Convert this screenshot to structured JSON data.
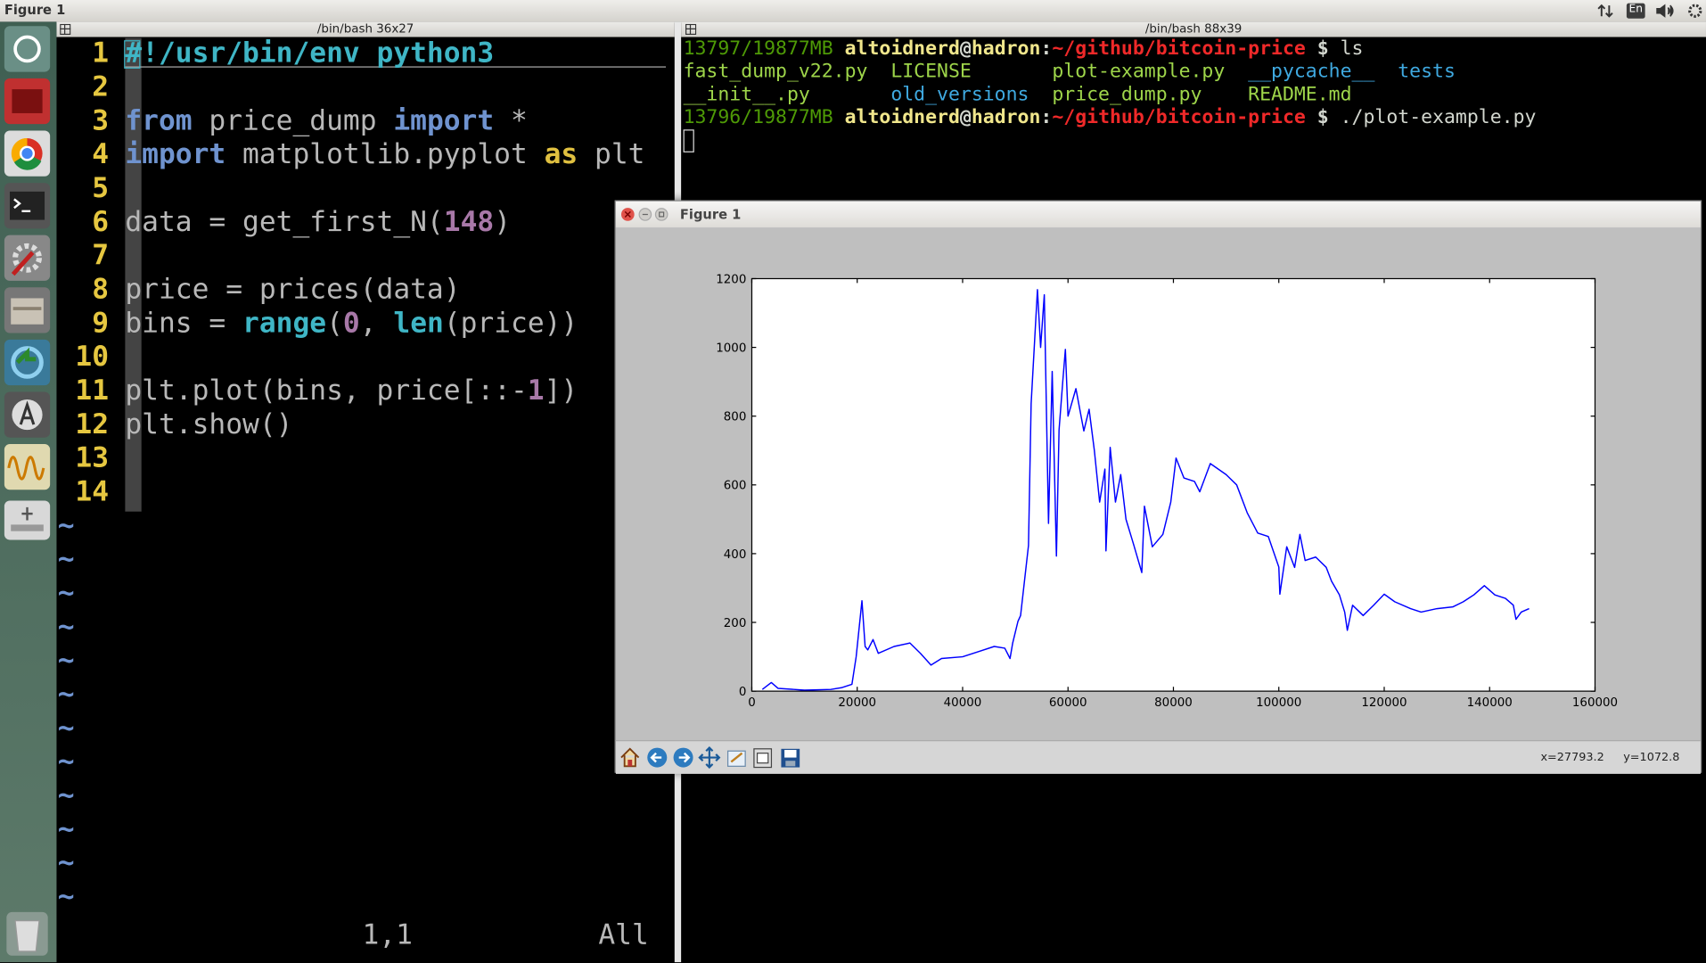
{
  "top_bar": {
    "title": "Figure 1",
    "keyboard": "En"
  },
  "left_terminal": {
    "title": "/bin/bash 36x27",
    "lines": [
      {
        "number": 1,
        "tokens": [
          {
            "text": "#!/usr/bin/env python3",
            "color": "#3fb6c6",
            "bold": true
          }
        ]
      },
      {
        "number": 2,
        "tokens": []
      },
      {
        "number": 3,
        "tokens": [
          {
            "text": "from",
            "color": "#6f93cf",
            "bold": true
          },
          {
            "text": " price_dump ",
            "color": "#b8b8b8",
            "bold": false
          },
          {
            "text": "import",
            "color": "#6f93cf",
            "bold": true
          },
          {
            "text": " *",
            "color": "#b8b8b8",
            "bold": false
          }
        ]
      },
      {
        "number": 4,
        "tokens": [
          {
            "text": "import",
            "color": "#6f93cf",
            "bold": true
          },
          {
            "text": " matplotlib.pyplot ",
            "color": "#b8b8b8",
            "bold": false
          },
          {
            "text": "as",
            "color": "#e0c040",
            "bold": true
          },
          {
            "text": " plt",
            "color": "#b8b8b8",
            "bold": false
          }
        ]
      },
      {
        "number": 5,
        "tokens": []
      },
      {
        "number": 6,
        "tokens": [
          {
            "text": "data = get_first_N(",
            "color": "#b8b8b8",
            "bold": false
          },
          {
            "text": "148",
            "color": "#a878a8",
            "bold": true
          },
          {
            "text": ")",
            "color": "#b8b8b8",
            "bold": false
          }
        ]
      },
      {
        "number": 7,
        "tokens": []
      },
      {
        "number": 8,
        "tokens": [
          {
            "text": "price = prices(data)",
            "color": "#b8b8b8",
            "bold": false
          }
        ]
      },
      {
        "number": 9,
        "tokens": [
          {
            "text": "bins = ",
            "color": "#b8b8b8",
            "bold": false
          },
          {
            "text": "range",
            "color": "#3fb6c6",
            "bold": true
          },
          {
            "text": "(",
            "color": "#b8b8b8",
            "bold": false
          },
          {
            "text": "0",
            "color": "#a878a8",
            "bold": true
          },
          {
            "text": ", ",
            "color": "#b8b8b8",
            "bold": false
          },
          {
            "text": "len",
            "color": "#3fb6c6",
            "bold": true
          },
          {
            "text": "(price))",
            "color": "#b8b8b8",
            "bold": false
          }
        ]
      },
      {
        "number": 10,
        "tokens": []
      },
      {
        "number": 11,
        "tokens": [
          {
            "text": "plt.plot(bins, price[::-",
            "color": "#b8b8b8",
            "bold": false
          },
          {
            "text": "1",
            "color": "#a878a8",
            "bold": true
          },
          {
            "text": "])",
            "color": "#b8b8b8",
            "bold": false
          }
        ]
      },
      {
        "number": 12,
        "tokens": [
          {
            "text": "plt.show()",
            "color": "#b8b8b8",
            "bold": false
          }
        ]
      },
      {
        "number": 13,
        "tokens": []
      },
      {
        "number": 14,
        "tokens": []
      }
    ],
    "tildes": [
      "~",
      "~",
      "~",
      "~",
      "~",
      "~",
      "~",
      "~",
      "~",
      "~",
      "~",
      "~"
    ],
    "position": "1,1",
    "scroll": "All"
  },
  "right_terminal": {
    "title": "/bin/bash 88x39",
    "lines": [
      [
        {
          "text": "13797/19877MB ",
          "color": "#4e9a06",
          "bold": false
        },
        {
          "text": "altoidnerd",
          "color": "#f0e68c",
          "bold": true
        },
        {
          "text": "@",
          "color": "#d3d7cf",
          "bold": true
        },
        {
          "text": "hadron",
          "color": "#f0e68c",
          "bold": true
        },
        {
          "text": ":",
          "color": "#d3d7cf",
          "bold": true
        },
        {
          "text": "~/github/bitcoin-price",
          "color": "#ef2929",
          "bold": true
        },
        {
          "text": " $ ",
          "color": "#d3d7cf",
          "bold": true
        },
        {
          "text": "ls",
          "color": "#d3d7cf",
          "bold": false
        }
      ],
      [
        {
          "text": "fast_dump_v22.py  ",
          "color": "#9ed54a",
          "bold": false
        },
        {
          "text": "LICENSE       ",
          "color": "#9ed54a",
          "bold": false
        },
        {
          "text": "plot-example.py  ",
          "color": "#9ed54a",
          "bold": false
        },
        {
          "text": "__pycache__  ",
          "color": "#3fa9e0",
          "bold": false
        },
        {
          "text": "tests",
          "color": "#3fa9e0",
          "bold": false
        }
      ],
      [
        {
          "text": "__init__.py       ",
          "color": "#9ed54a",
          "bold": false
        },
        {
          "text": "old_versions  ",
          "color": "#3fa9e0",
          "bold": false
        },
        {
          "text": "price_dump.py    ",
          "color": "#9ed54a",
          "bold": false
        },
        {
          "text": "README.md",
          "color": "#9ed54a",
          "bold": false
        }
      ],
      [
        {
          "text": "13796/19877MB ",
          "color": "#4e9a06",
          "bold": false
        },
        {
          "text": "altoidnerd",
          "color": "#f0e68c",
          "bold": true
        },
        {
          "text": "@",
          "color": "#d3d7cf",
          "bold": true
        },
        {
          "text": "hadron",
          "color": "#f0e68c",
          "bold": true
        },
        {
          "text": ":",
          "color": "#d3d7cf",
          "bold": true
        },
        {
          "text": "~/github/bitcoin-price",
          "color": "#ef2929",
          "bold": true
        },
        {
          "text": " $ ",
          "color": "#d3d7cf",
          "bold": true
        },
        {
          "text": "./plot-example.py",
          "color": "#d3d7cf",
          "bold": false
        }
      ]
    ]
  },
  "figure_window": {
    "title": "Figure 1",
    "status_x": "x=27793.2",
    "status_y": "y=1072.8"
  },
  "chart_data": {
    "type": "line",
    "xlim": [
      0,
      160000
    ],
    "ylim": [
      0,
      1200
    ],
    "xticks": [
      0,
      20000,
      40000,
      60000,
      80000,
      100000,
      120000,
      140000,
      160000
    ],
    "yticks": [
      0,
      200,
      400,
      600,
      800,
      1000,
      1200
    ],
    "grid": false,
    "series": [
      {
        "color": "#0000ff",
        "x": [
          2000,
          3700,
          5000,
          10000,
          15000,
          17000,
          19000,
          19800,
          20900,
          21500,
          22000,
          23000,
          24000,
          27000,
          30000,
          32000,
          34000,
          36000,
          40000,
          43000,
          46000,
          48000,
          49000,
          49500,
          50500,
          51000,
          52500,
          53000,
          54200,
          54800,
          55500,
          56300,
          57000,
          57800,
          58300,
          59000,
          59500,
          60000,
          61500,
          63000,
          64000,
          65000,
          66000,
          67000,
          67200,
          68000,
          69000,
          70000,
          71000,
          72500,
          74000,
          74500,
          76000,
          78000,
          79500,
          80500,
          82000,
          84000,
          85000,
          87000,
          90000,
          92000,
          94000,
          96000,
          98000,
          100000,
          100200,
          101500,
          103000,
          104000,
          105000,
          107000,
          109000,
          110000,
          111500,
          112500,
          113000,
          114000,
          116000,
          118000,
          120000,
          122000,
          125000,
          127000,
          130000,
          133000,
          135000,
          137000,
          139000,
          141000,
          143000,
          144500,
          145000,
          146000,
          147500
        ],
        "values": [
          5,
          25,
          8,
          3,
          5,
          10,
          20,
          100,
          263,
          130,
          120,
          150,
          110,
          130,
          140,
          110,
          76,
          95,
          100,
          115,
          130,
          125,
          95,
          140,
          203,
          220,
          424,
          836,
          1168,
          1000,
          1153,
          488,
          930,
          393,
          760,
          900,
          994,
          800,
          880,
          757,
          820,
          700,
          550,
          646,
          408,
          709,
          550,
          630,
          500,
          424,
          345,
          538,
          420,
          456,
          550,
          678,
          620,
          610,
          580,
          662,
          630,
          600,
          519,
          460,
          450,
          361,
          282,
          420,
          360,
          456,
          380,
          390,
          360,
          320,
          280,
          230,
          177,
          250,
          220,
          250,
          282,
          260,
          240,
          230,
          240,
          245,
          260,
          280,
          307,
          280,
          270,
          250,
          209,
          230,
          240
        ]
      }
    ]
  }
}
